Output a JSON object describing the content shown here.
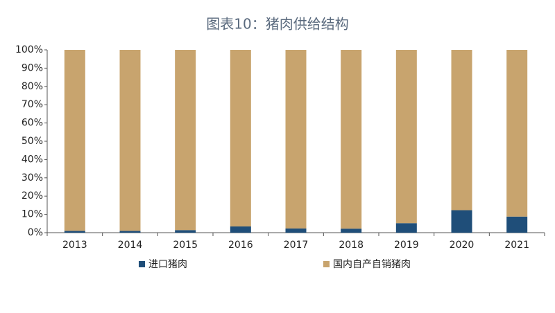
{
  "chart_data": {
    "type": "stacked_bar",
    "title": "图表10：猪肉供给结构",
    "categories": [
      "2013",
      "2014",
      "2015",
      "2016",
      "2017",
      "2018",
      "2019",
      "2020",
      "2021"
    ],
    "series": [
      {
        "name": "进口猪肉",
        "color": "#1f4e79",
        "values": [
          1.0,
          1.0,
          1.4,
          3.4,
          2.3,
          2.2,
          5.2,
          12.3,
          8.8
        ]
      },
      {
        "name": "国内自产自销猪肉",
        "color": "#c8a46e",
        "values": [
          99.0,
          99.0,
          98.6,
          96.6,
          97.7,
          97.8,
          94.8,
          87.7,
          91.2
        ]
      }
    ],
    "ylim": [
      0,
      100
    ],
    "yticks": [
      {
        "value": 0,
        "label": "0%"
      },
      {
        "value": 10,
        "label": "10%"
      },
      {
        "value": 20,
        "label": "20%"
      },
      {
        "value": 30,
        "label": "30%"
      },
      {
        "value": 40,
        "label": "40%"
      },
      {
        "value": 50,
        "label": "50%"
      },
      {
        "value": 60,
        "label": "60%"
      },
      {
        "value": 70,
        "label": "70%"
      },
      {
        "value": 80,
        "label": "80%"
      },
      {
        "value": 90,
        "label": "90%"
      },
      {
        "value": 100,
        "label": "100%"
      }
    ]
  }
}
